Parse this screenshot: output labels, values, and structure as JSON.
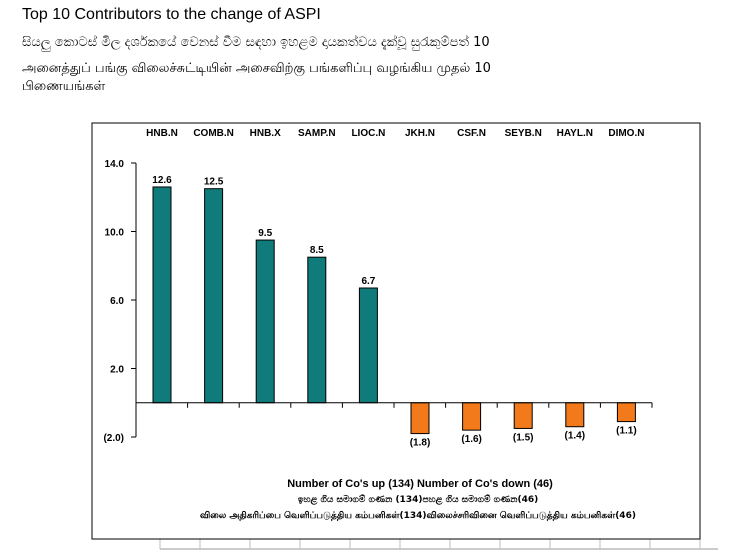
{
  "page": {
    "title": "Top 10 Contributors to the change of ASPI",
    "subtitle_sinhala": "සියලු කොටස් මිල දර්ශකයේ වෙනස් වීම සඳහා ඉහළම දායකත්වය දැක්වූ සුරැකුම්පත් 10",
    "subtitle_tamil_line1": "அனைத்துப் பங்கு விலைச்சுட்டியின் அசைவிற்கு பங்களிப்பு வழங்கிய முதல் 10",
    "subtitle_tamil_line2": "பிணையங்கள்"
  },
  "chart_data": {
    "type": "bar",
    "categories": [
      "HNB.N",
      "COMB.N",
      "HNB.X",
      "SAMP.N",
      "LIOC.N",
      "JKH.N",
      "CSF.N",
      "SEYB.N",
      "HAYL.N",
      "DIMO.N"
    ],
    "values": [
      12.6,
      12.5,
      9.5,
      8.5,
      6.7,
      -1.8,
      -1.6,
      -1.5,
      -1.4,
      -1.1
    ],
    "value_labels": [
      "12.6",
      "12.5",
      "9.5",
      "8.5",
      "6.7",
      "(1.8)",
      "(1.6)",
      "(1.5)",
      "(1.4)",
      "(1.1)"
    ],
    "ylim": [
      -2.0,
      14.0
    ],
    "yticks": [
      -2.0,
      2.0,
      6.0,
      10.0,
      14.0
    ],
    "ytick_labels": [
      "(2.0)",
      "2.0",
      "6.0",
      "10.0",
      "14.0"
    ],
    "category_labels_position": "top",
    "colors": {
      "positive": "#0f7b7b",
      "negative": "#f27a1a",
      "border": "#000000"
    },
    "footer_english": "Number of Co's up (134) Number of Co's down  (46)",
    "footer_sinhala": "ඉහළ ගිය සමාගම් ගණන (134)පහළ ගිය සමාගම් ගණන(46)",
    "footer_tamil": "விலை அதிகரிப்பை வெளிப்படுத்திய கம்பனிகள்(134)விலைச்சரிவினை வெளிப்படுத்திய கம்பனிகள்(46)"
  }
}
